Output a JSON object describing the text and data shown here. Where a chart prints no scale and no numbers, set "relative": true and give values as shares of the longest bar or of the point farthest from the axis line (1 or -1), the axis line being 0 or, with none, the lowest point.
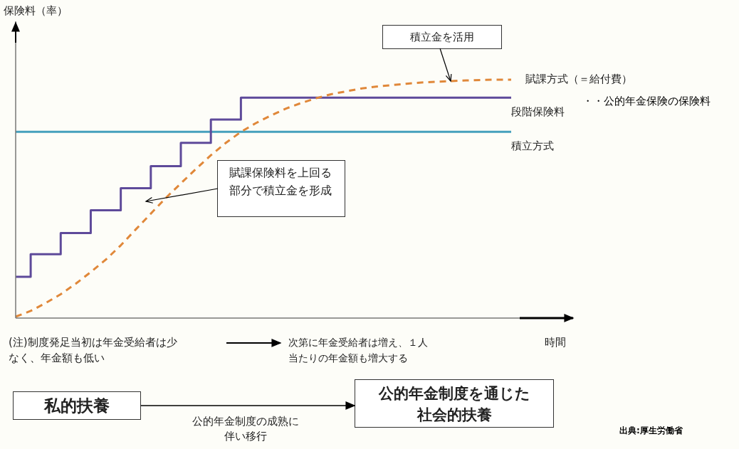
{
  "chart_data": {
    "type": "line",
    "relative": true,
    "xlabel": "時間",
    "legend": false,
    "marker": "none",
    "categories": [
      null,
      null,
      null,
      null,
      null,
      null,
      null,
      null,
      null,
      null,
      null,
      null,
      null,
      null,
      null,
      null,
      null,
      null,
      null,
      null,
      null,
      null,
      null,
      null,
      null,
      null,
      null,
      null,
      null,
      null,
      null,
      null,
      null,
      null
    ],
    "series": [
      {
        "name": "賦課方式（＝給付費）",
        "color": "#e0883a",
        "line_style": "dashed",
        "values": [
          0.006,
          0.03,
          0.063,
          0.1,
          0.144,
          0.193,
          0.245,
          0.305,
          0.372,
          0.438,
          0.504,
          0.565,
          0.625,
          0.683,
          0.735,
          0.781,
          0.818,
          0.85,
          0.879,
          0.902,
          0.922,
          0.939,
          0.951,
          0.963,
          0.971,
          0.977,
          0.983,
          0.988,
          0.991,
          0.994,
          0.997,
          0.999,
          1,
          1
        ]
      },
      {
        "name": "段階保険料",
        "type": "step",
        "color": "#5e4a9a",
        "values": [
          0.173,
          0.173,
          0.268,
          0.268,
          0.357,
          0.357,
          0.452,
          0.452,
          0.545,
          0.545,
          0.637,
          0.637,
          0.735,
          0.735,
          0.833,
          0.833,
          0.925,
          0.925,
          0.925,
          0.925,
          0.925,
          0.925,
          0.925,
          0.925,
          0.925,
          0.925,
          0.925,
          0.925,
          0.925,
          0.925,
          0.925,
          0.925,
          0.925,
          0.925
        ]
      },
      {
        "name": "積立方式",
        "color": "#45a0bd",
        "values": [
          0.781,
          0.781,
          0.781,
          0.781,
          0.781,
          0.781,
          0.781,
          0.781,
          0.781,
          0.781,
          0.781,
          0.781,
          0.781,
          0.781,
          0.781,
          0.781,
          0.781,
          0.781,
          0.781,
          0.781,
          0.781,
          0.781,
          0.781,
          0.781,
          0.781,
          0.781,
          0.781,
          0.781,
          0.781,
          0.781,
          0.781,
          0.781,
          0.781,
          0.781
        ]
      }
    ],
    "annotations": [
      "積立金を活用",
      "賦課保険料を上回る部分で積立金を形成",
      "・・公的年金保険の保険料",
      "(注)制度発足当初は年金受給者は少なく、年金額も低い",
      "次第に年金受給者は増え、１人当たりの年金額も増大する",
      "私的扶養",
      "公的年金制度を通じた社会的扶養",
      "公的年金制度の成熟に伴い移行",
      "出典:厚生労働省",
      "保険料（率）"
    ]
  }
}
